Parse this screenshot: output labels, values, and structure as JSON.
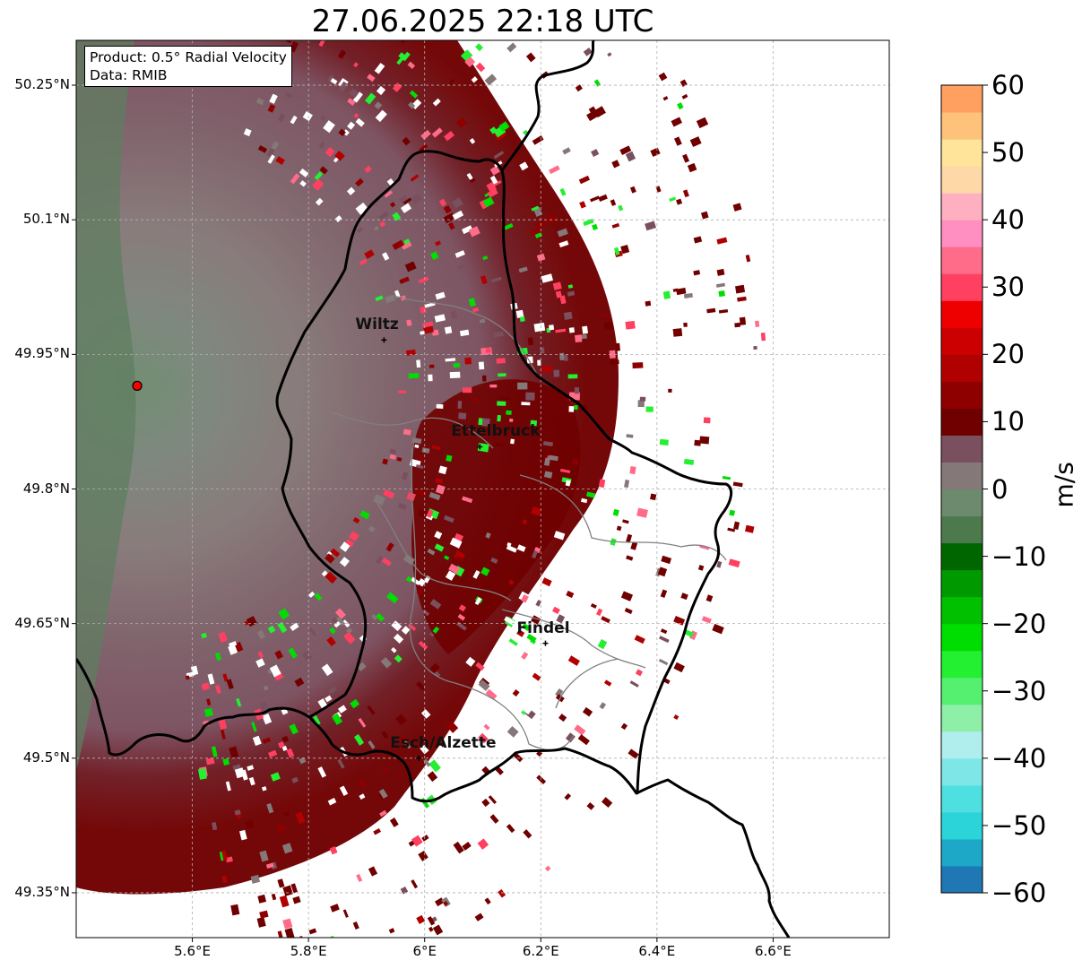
{
  "title": "27.06.2025 22:18 UTC",
  "annotation": {
    "product": "Product: 0.5° Radial Velocity",
    "data": "Data: RMIB"
  },
  "cities": [
    {
      "name": "Wiltz",
      "lon": 5.93,
      "lat": 49.966
    },
    {
      "name": "Ettelbruck",
      "lon": 6.095,
      "lat": 49.847
    },
    {
      "name": "Findel",
      "lon": 6.208,
      "lat": 49.628
    },
    {
      "name": "Esch/Alzette",
      "lon": 5.99,
      "lat": 49.5
    }
  ],
  "radar_site": {
    "lon": 5.505,
    "lat": 49.915
  },
  "map_extent": {
    "lon": [
      5.4,
      6.8
    ],
    "lat": [
      49.3,
      50.3
    ]
  },
  "lat_ticks": [
    "50.25°N",
    "50.1°N",
    "49.95°N",
    "49.8°N",
    "49.65°N",
    "49.5°N",
    "49.35°N"
  ],
  "lat_tick_values": [
    50.25,
    50.1,
    49.95,
    49.8,
    49.65,
    49.5,
    49.35
  ],
  "lon_ticks": [
    "5.6°E",
    "5.8°E",
    "6°E",
    "6.2°E",
    "6.4°E",
    "6.6°E"
  ],
  "lon_tick_values": [
    5.6,
    5.8,
    6.0,
    6.2,
    6.4,
    6.6
  ],
  "colorbar": {
    "label": "m/s",
    "range": [
      -60,
      60
    ],
    "ticks": [
      "60",
      "50",
      "40",
      "30",
      "20",
      "10",
      "0",
      "−10",
      "−20",
      "−30",
      "−40",
      "−50",
      "−60"
    ],
    "tick_values": [
      60,
      50,
      40,
      30,
      20,
      10,
      0,
      -10,
      -20,
      -30,
      -40,
      -50,
      -60
    ],
    "colors": [
      {
        "from": -60,
        "to": -56,
        "color": "#1f77b4"
      },
      {
        "from": -56,
        "to": -52,
        "color": "#1ea8c8"
      },
      {
        "from": -52,
        "to": -48,
        "color": "#2ad4d8"
      },
      {
        "from": -48,
        "to": -44,
        "color": "#4ee0e0"
      },
      {
        "from": -44,
        "to": -40,
        "color": "#7ee6e6"
      },
      {
        "from": -40,
        "to": -36,
        "color": "#b0eeee"
      },
      {
        "from": -36,
        "to": -32,
        "color": "#8ef0a8"
      },
      {
        "from": -32,
        "to": -28,
        "color": "#55f070"
      },
      {
        "from": -28,
        "to": -24,
        "color": "#22f030"
      },
      {
        "from": -24,
        "to": -20,
        "color": "#00dd00"
      },
      {
        "from": -20,
        "to": -16,
        "color": "#00c000"
      },
      {
        "from": -16,
        "to": -12,
        "color": "#009a00"
      },
      {
        "from": -12,
        "to": -8,
        "color": "#006600"
      },
      {
        "from": -8,
        "to": -4,
        "color": "#4d7a4d"
      },
      {
        "from": -4,
        "to": 0,
        "color": "#6e8a6e"
      },
      {
        "from": 0,
        "to": 4,
        "color": "#857878"
      },
      {
        "from": 4,
        "to": 8,
        "color": "#7a4f5e"
      },
      {
        "from": 8,
        "to": 12,
        "color": "#700000"
      },
      {
        "from": 12,
        "to": 16,
        "color": "#8e0000"
      },
      {
        "from": 16,
        "to": 20,
        "color": "#b00000"
      },
      {
        "from": 20,
        "to": 24,
        "color": "#cc0000"
      },
      {
        "from": 24,
        "to": 28,
        "color": "#ee0000"
      },
      {
        "from": 28,
        "to": 32,
        "color": "#ff4060"
      },
      {
        "from": 32,
        "to": 36,
        "color": "#ff6c8a"
      },
      {
        "from": 36,
        "to": 40,
        "color": "#ff8fc0"
      },
      {
        "from": 40,
        "to": 44,
        "color": "#ffb0c0"
      },
      {
        "from": 44,
        "to": 48,
        "color": "#ffd8a8"
      },
      {
        "from": 48,
        "to": 52,
        "color": "#ffe49a"
      },
      {
        "from": 52,
        "to": 56,
        "color": "#ffc27a"
      },
      {
        "from": 56,
        "to": 60,
        "color": "#ffa060"
      }
    ]
  },
  "colors": {
    "border_national": "#000000",
    "border_admin": "#808080",
    "radar_site_fill": "#ff0000",
    "outbound_dark": "#700000",
    "outbound_mid": "#7a4f5e",
    "near_zero": "#857878",
    "inbound_gray": "#6e8a6e"
  }
}
